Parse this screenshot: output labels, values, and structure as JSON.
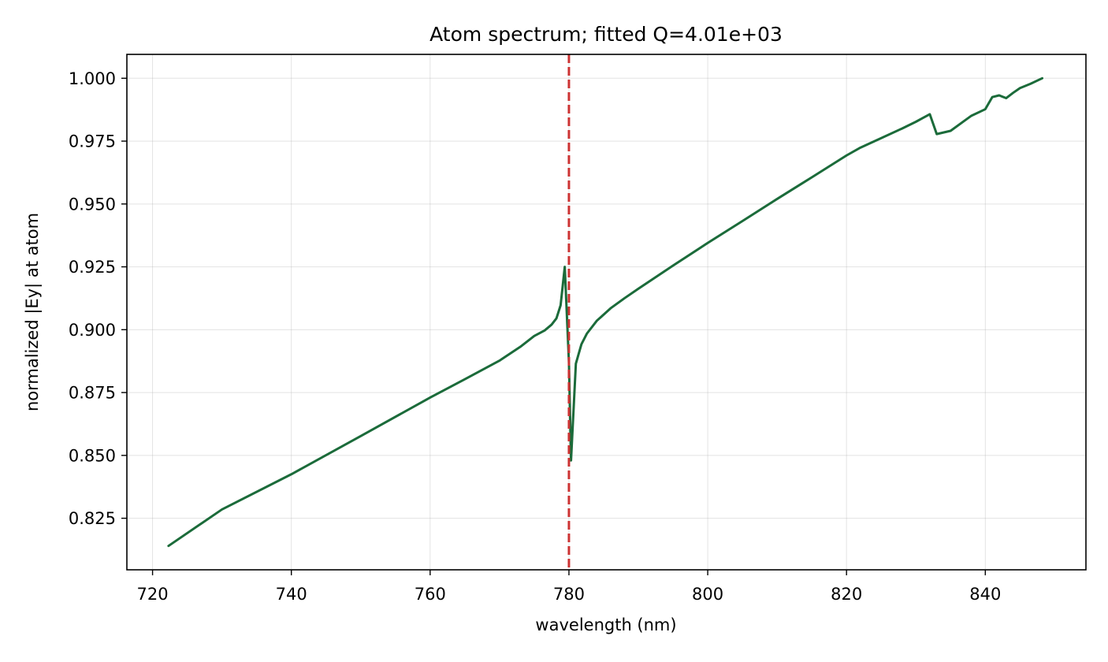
{
  "chart_data": {
    "type": "line",
    "title": "Atom spectrum; fitted Q=4.01e+03",
    "xlabel": "wavelength (nm)",
    "ylabel": "normalized |Ey| at atom",
    "xlim": [
      716.3,
      854.5
    ],
    "ylim": [
      0.8045,
      1.0095
    ],
    "xticks": [
      720,
      740,
      760,
      780,
      800,
      820,
      840
    ],
    "xtick_labels": [
      "720",
      "740",
      "760",
      "780",
      "800",
      "820",
      "840"
    ],
    "yticks": [
      0.825,
      0.85,
      0.875,
      0.9,
      0.925,
      0.95,
      0.975,
      1.0
    ],
    "ytick_labels": [
      "0.825",
      "0.850",
      "0.875",
      "0.900",
      "0.925",
      "0.950",
      "0.975",
      "1.000"
    ],
    "grid": true,
    "series": [
      {
        "color": "#1b6b3a",
        "x": [
          722.3,
          730,
          740,
          750,
          760,
          765,
          770,
          773,
          775,
          776.5,
          777.5,
          778.2,
          778.8,
          779.4,
          780.0,
          780.3,
          781.0,
          781.8,
          782.6,
          784.0,
          786.0,
          788.0,
          790.0,
          795.0,
          800.0,
          805.0,
          810.0,
          815.0,
          820.0,
          822.0,
          825.0,
          828.0,
          830.0,
          831.0,
          832.0,
          833.0,
          835.0,
          837.0,
          838.0,
          840.0,
          841.0,
          842.0,
          843.0,
          844.0,
          845.0,
          846.5,
          848.2
        ],
        "y": [
          0.814,
          0.8285,
          0.8425,
          0.8577,
          0.873,
          0.8803,
          0.8877,
          0.8932,
          0.8975,
          0.8997,
          0.902,
          0.9045,
          0.9097,
          0.925,
          0.887,
          0.848,
          0.8865,
          0.8942,
          0.8985,
          0.9035,
          0.9085,
          0.9125,
          0.9163,
          0.9255,
          0.9345,
          0.9432,
          0.952,
          0.9606,
          0.9693,
          0.9724,
          0.9762,
          0.98,
          0.9827,
          0.9842,
          0.9857,
          0.9778,
          0.9791,
          0.9831,
          0.9851,
          0.9877,
          0.9925,
          0.9932,
          0.9921,
          0.9942,
          0.9961,
          0.9978,
          1.0
        ]
      }
    ],
    "annotations": [
      {
        "type": "vline",
        "x": 780.0,
        "color": "#cc3333",
        "style": "dashed"
      }
    ]
  }
}
